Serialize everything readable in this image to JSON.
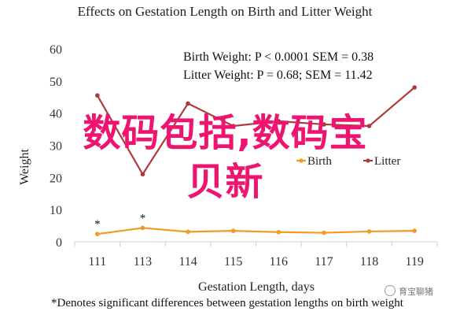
{
  "chart_data": {
    "type": "line",
    "title": "Effects on Gestation Length on Birth and Litter Weight",
    "xlabel": "Gestation Length, days",
    "ylabel": "Weight",
    "categories": [
      "111",
      "113",
      "114",
      "115",
      "116",
      "117",
      "118",
      "119"
    ],
    "ylim": [
      0,
      60
    ],
    "yticks": [
      0,
      10,
      20,
      30,
      40,
      50,
      60
    ],
    "grid": false,
    "legend_position": "inside-middle-right",
    "series": [
      {
        "name": "Birth",
        "color": "#f39a22",
        "values": [
          2.4,
          4.3,
          3.1,
          3.4,
          3.0,
          2.8,
          3.2,
          3.4
        ]
      },
      {
        "name": "Litter",
        "color": "#b03a3a",
        "values": [
          45.5,
          21.0,
          43.0,
          36.0,
          37.5,
          36.5,
          36.0,
          48.0
        ]
      }
    ],
    "markers": [
      {
        "category": "111",
        "text": "*"
      },
      {
        "category": "113",
        "text": "*"
      }
    ],
    "annotations": [
      {
        "key": "birth",
        "text": "Birth Weight: P < 0.0001 SEM = 0.38"
      },
      {
        "key": "litter",
        "text": "Litter Weight: P = 0.68; SEM = 11.42"
      }
    ],
    "footnote": "*Denotes significant differences between gestation lengths on birth weight"
  },
  "overlay": {
    "line1": "数码包括,数码宝",
    "line2": "贝新"
  },
  "watermark": {
    "text": "育宝聊猪"
  }
}
